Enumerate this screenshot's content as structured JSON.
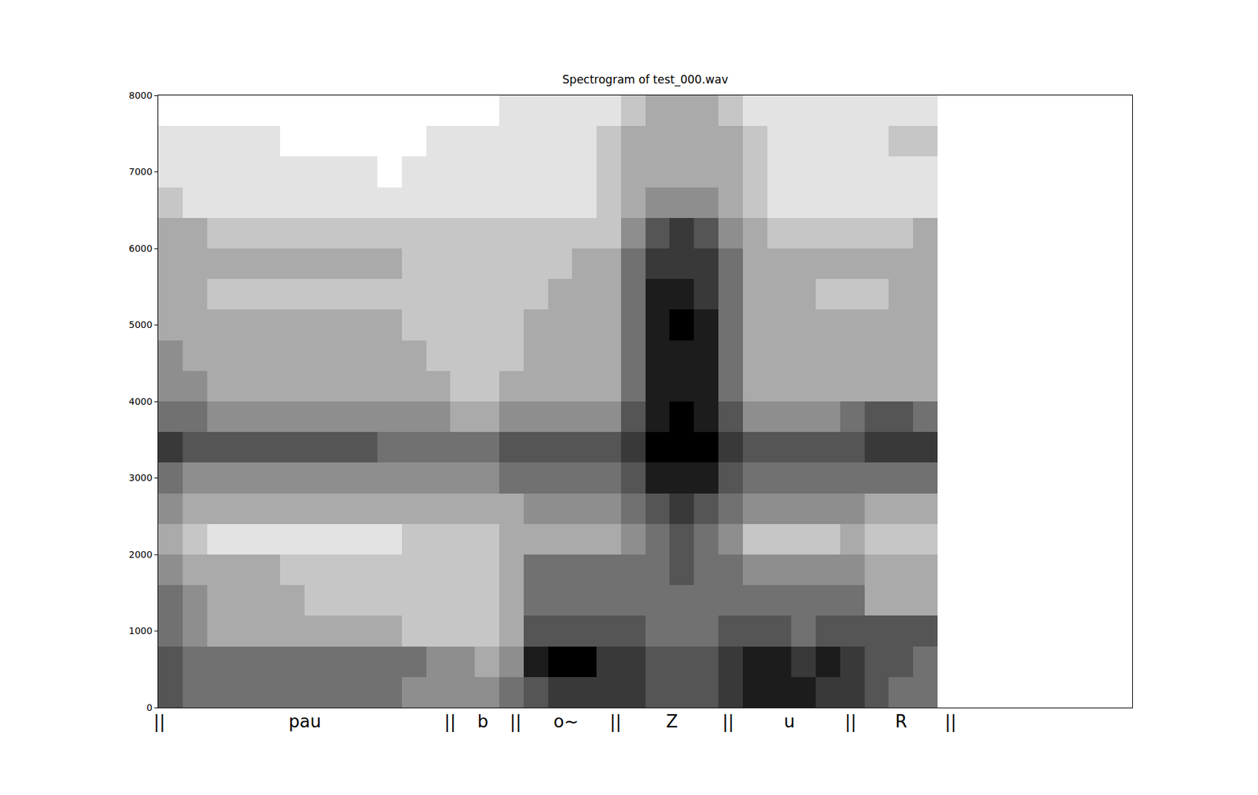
{
  "chart_data": {
    "type": "heatmap",
    "title": "Spectrogram of test_000.wav",
    "xlim": [
      0,
      100
    ],
    "ylim": [
      0,
      8000
    ],
    "yticks": [
      0,
      1000,
      2000,
      3000,
      4000,
      5000,
      6000,
      7000,
      8000
    ],
    "tick_labels": "y",
    "grid": false,
    "color": "#000000",
    "zlim": [
      0,
      9
    ],
    "x": [
      1.25,
      3.75,
      6.25,
      8.75,
      11.25,
      13.75,
      16.25,
      18.75,
      21.25,
      23.75,
      26.25,
      28.75,
      31.25,
      33.75,
      36.25,
      38.75,
      41.25,
      43.75,
      46.25,
      48.75,
      51.25,
      53.75,
      56.25,
      58.75,
      61.25,
      63.75,
      66.25,
      68.75,
      71.25,
      73.75,
      76.25,
      78.75
    ],
    "y": [
      200,
      600,
      1000,
      1400,
      1800,
      2200,
      2600,
      3000,
      3400,
      3800,
      4200,
      4600,
      5000,
      5400,
      5800,
      6200,
      6600,
      7000,
      7400,
      7800
    ],
    "z": [
      [
        6,
        5,
        5,
        5,
        5,
        5,
        5,
        5,
        5,
        5,
        4,
        4,
        4,
        4,
        5,
        6,
        7,
        7,
        7,
        7,
        6,
        6,
        6,
        7,
        8,
        8,
        8,
        7,
        7,
        6,
        5,
        5
      ],
      [
        6,
        5,
        5,
        5,
        5,
        5,
        5,
        5,
        5,
        5,
        5,
        4,
        4,
        3,
        4,
        8,
        9,
        9,
        7,
        7,
        6,
        6,
        6,
        7,
        8,
        8,
        7,
        8,
        7,
        6,
        6,
        5
      ],
      [
        5,
        4,
        3,
        3,
        3,
        3,
        3,
        3,
        3,
        3,
        2,
        2,
        2,
        2,
        3,
        6,
        6,
        6,
        6,
        6,
        5,
        5,
        5,
        6,
        6,
        6,
        5,
        6,
        6,
        6,
        6,
        6
      ],
      [
        5,
        4,
        3,
        3,
        3,
        3,
        2,
        2,
        2,
        2,
        2,
        2,
        2,
        2,
        3,
        5,
        5,
        5,
        5,
        5,
        5,
        5,
        5,
        5,
        5,
        5,
        5,
        5,
        5,
        3,
        3,
        3
      ],
      [
        4,
        3,
        3,
        3,
        3,
        2,
        2,
        2,
        2,
        2,
        2,
        2,
        2,
        2,
        3,
        5,
        5,
        5,
        5,
        5,
        5,
        6,
        5,
        5,
        4,
        4,
        4,
        4,
        4,
        3,
        3,
        3
      ],
      [
        3,
        2,
        1,
        1,
        1,
        1,
        1,
        1,
        1,
        1,
        2,
        2,
        2,
        2,
        3,
        3,
        3,
        3,
        3,
        4,
        5,
        6,
        5,
        4,
        2,
        2,
        2,
        2,
        3,
        2,
        2,
        2
      ],
      [
        4,
        3,
        3,
        3,
        3,
        3,
        3,
        3,
        3,
        3,
        3,
        3,
        3,
        3,
        3,
        4,
        4,
        4,
        4,
        5,
        6,
        7,
        6,
        5,
        4,
        4,
        4,
        4,
        4,
        3,
        3,
        3
      ],
      [
        5,
        4,
        4,
        4,
        4,
        4,
        4,
        4,
        4,
        4,
        4,
        4,
        4,
        4,
        5,
        5,
        5,
        5,
        5,
        6,
        8,
        8,
        8,
        6,
        5,
        5,
        5,
        5,
        5,
        5,
        5,
        5
      ],
      [
        7,
        6,
        6,
        6,
        6,
        6,
        6,
        6,
        6,
        5,
        5,
        5,
        5,
        5,
        6,
        6,
        6,
        6,
        6,
        7,
        9,
        9,
        9,
        7,
        6,
        6,
        6,
        6,
        6,
        7,
        7,
        7
      ],
      [
        5,
        5,
        4,
        4,
        4,
        4,
        4,
        4,
        4,
        4,
        4,
        4,
        3,
        3,
        4,
        4,
        4,
        4,
        4,
        6,
        8,
        9,
        8,
        6,
        4,
        4,
        4,
        4,
        5,
        6,
        6,
        5
      ],
      [
        4,
        4,
        3,
        3,
        3,
        3,
        3,
        3,
        3,
        3,
        3,
        3,
        2,
        2,
        3,
        3,
        3,
        3,
        3,
        5,
        8,
        8,
        8,
        5,
        3,
        3,
        3,
        3,
        3,
        3,
        3,
        3
      ],
      [
        4,
        3,
        3,
        3,
        3,
        3,
        3,
        3,
        3,
        3,
        3,
        2,
        2,
        2,
        2,
        3,
        3,
        3,
        3,
        5,
        8,
        8,
        8,
        5,
        3,
        3,
        3,
        3,
        3,
        3,
        3,
        3
      ],
      [
        3,
        3,
        3,
        3,
        3,
        3,
        3,
        3,
        3,
        3,
        2,
        2,
        2,
        2,
        2,
        3,
        3,
        3,
        3,
        5,
        8,
        9,
        8,
        5,
        3,
        3,
        3,
        3,
        3,
        3,
        3,
        3
      ],
      [
        3,
        3,
        2,
        2,
        2,
        2,
        2,
        2,
        2,
        2,
        2,
        2,
        2,
        2,
        2,
        2,
        3,
        3,
        3,
        5,
        8,
        8,
        7,
        5,
        3,
        3,
        3,
        2,
        2,
        2,
        3,
        3
      ],
      [
        3,
        3,
        3,
        3,
        3,
        3,
        3,
        3,
        3,
        3,
        2,
        2,
        2,
        2,
        2,
        2,
        2,
        3,
        3,
        5,
        7,
        7,
        7,
        5,
        3,
        3,
        3,
        3,
        3,
        3,
        3,
        3
      ],
      [
        3,
        3,
        2,
        2,
        2,
        2,
        2,
        2,
        2,
        2,
        2,
        2,
        2,
        2,
        2,
        2,
        2,
        2,
        2,
        4,
        6,
        7,
        6,
        4,
        3,
        2,
        2,
        2,
        2,
        2,
        2,
        3
      ],
      [
        2,
        1,
        1,
        1,
        1,
        1,
        1,
        1,
        1,
        1,
        1,
        1,
        1,
        1,
        1,
        1,
        1,
        1,
        2,
        3,
        4,
        4,
        4,
        3,
        2,
        1,
        1,
        1,
        1,
        1,
        1,
        1
      ],
      [
        1,
        1,
        1,
        1,
        1,
        1,
        1,
        1,
        1,
        0,
        1,
        1,
        1,
        1,
        1,
        1,
        1,
        1,
        2,
        3,
        3,
        3,
        3,
        3,
        2,
        1,
        1,
        1,
        1,
        1,
        1,
        1
      ],
      [
        1,
        1,
        1,
        1,
        1,
        0,
        0,
        0,
        0,
        0,
        0,
        1,
        1,
        1,
        1,
        1,
        1,
        1,
        2,
        3,
        3,
        3,
        3,
        3,
        2,
        1,
        1,
        1,
        1,
        1,
        2,
        2
      ],
      [
        0,
        0,
        0,
        0,
        0,
        0,
        0,
        0,
        0,
        0,
        0,
        0,
        0,
        0,
        1,
        1,
        1,
        1,
        1,
        2,
        3,
        3,
        3,
        2,
        1,
        1,
        1,
        1,
        1,
        1,
        1,
        1
      ]
    ],
    "boundary_mark": "||",
    "boundaries": [
      0.16,
      30.0,
      36.7,
      47.0,
      58.5,
      71.1,
      81.4
    ],
    "segments": [
      {
        "label": "pau",
        "start": 0.16,
        "end": 30.0
      },
      {
        "label": "b",
        "start": 30.0,
        "end": 36.7
      },
      {
        "label": "o~",
        "start": 36.7,
        "end": 47.0
      },
      {
        "label": "Z",
        "start": 47.0,
        "end": 58.5
      },
      {
        "label": "u",
        "start": 58.5,
        "end": 71.1
      },
      {
        "label": "R",
        "start": 71.1,
        "end": 81.4
      }
    ]
  }
}
